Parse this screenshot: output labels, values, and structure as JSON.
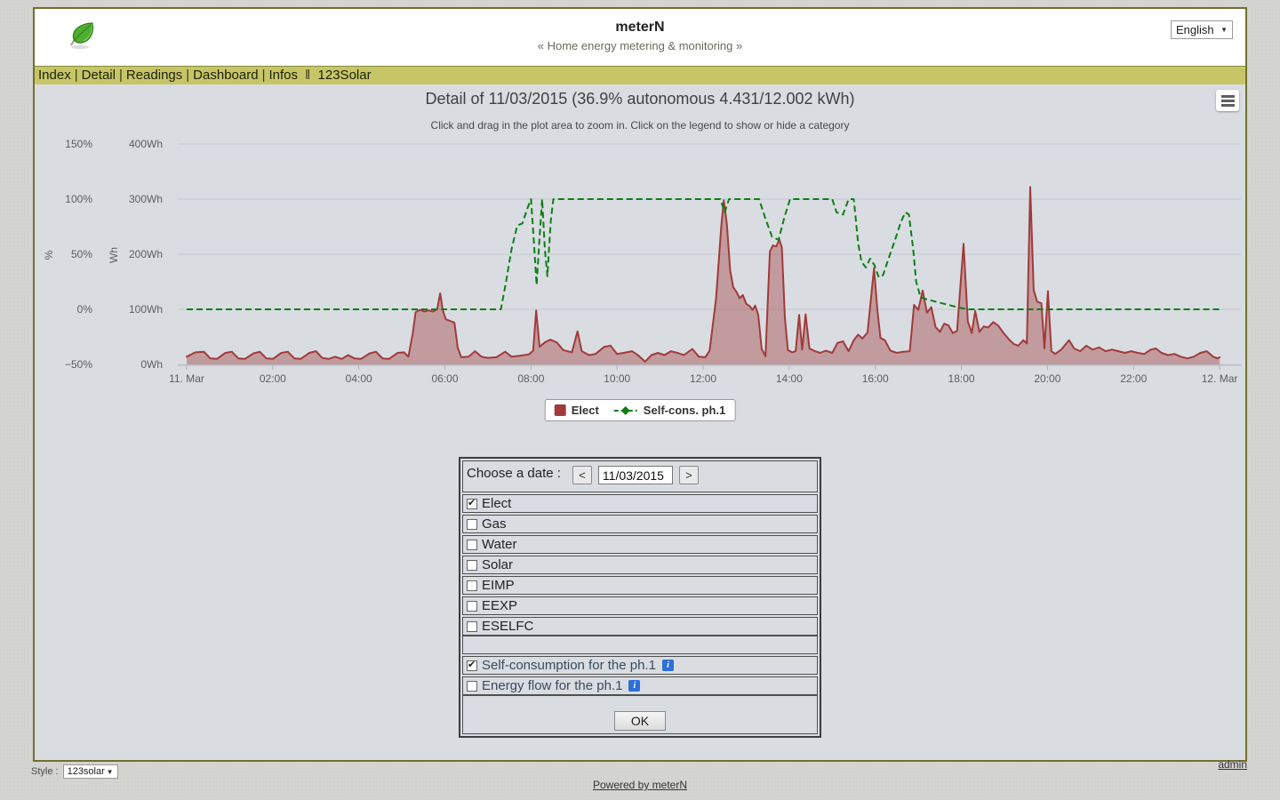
{
  "header": {
    "title": "meterN",
    "subtitle": "« Home energy metering & monitoring »",
    "language": "English"
  },
  "nav": {
    "items": [
      "Index",
      "Detail",
      "Readings",
      "Dashboard",
      "Infos"
    ],
    "separator": "|",
    "double_separator": "‖",
    "external_item": "123Solar"
  },
  "chart_data": {
    "type": "area+line",
    "title": "Detail of 11/03/2015 (36.9% autonomous 4.431/12.002 kWh)",
    "subtitle": "Click and drag in the plot area to zoom in. Click on the legend to show or hide a category",
    "x_axis": {
      "tick_labels": [
        "11. Mar",
        "02:00",
        "04:00",
        "06:00",
        "08:00",
        "10:00",
        "12:00",
        "14:00",
        "16:00",
        "18:00",
        "20:00",
        "22:00",
        "12. Mar"
      ],
      "tick_hours": [
        0,
        2,
        4,
        6,
        8,
        10,
        12,
        14,
        16,
        18,
        20,
        22,
        24
      ],
      "range_hours": [
        0,
        24
      ]
    },
    "y_axis_pct": {
      "title": "%",
      "tick_labels": [
        "150%",
        "100%",
        "50%",
        "0%",
        "−50%"
      ],
      "tick_values": [
        150,
        100,
        50,
        0,
        -50
      ],
      "range": [
        -50,
        150
      ]
    },
    "y_axis_wh": {
      "title": "Wh",
      "tick_labels": [
        "400Wh",
        "300Wh",
        "200Wh",
        "100Wh",
        "0Wh"
      ],
      "tick_values": [
        400,
        300,
        200,
        100,
        0
      ],
      "range": [
        0,
        400
      ]
    },
    "grid": true,
    "legend_position": "bottom-center",
    "series": [
      {
        "name": "Elect",
        "type": "area",
        "axis": "wh",
        "color": "#A13A3A",
        "fill": "rgba(161,58,58,0.4)",
        "points": [
          [
            0,
            14
          ],
          [
            0.2,
            22
          ],
          [
            0.4,
            23
          ],
          [
            0.55,
            11
          ],
          [
            0.7,
            10
          ],
          [
            0.9,
            21
          ],
          [
            1.05,
            23
          ],
          [
            1.2,
            11
          ],
          [
            1.35,
            10
          ],
          [
            1.55,
            20
          ],
          [
            1.7,
            23
          ],
          [
            1.85,
            11
          ],
          [
            2,
            10
          ],
          [
            2.2,
            21
          ],
          [
            2.35,
            23
          ],
          [
            2.5,
            11
          ],
          [
            2.65,
            10
          ],
          [
            2.85,
            21
          ],
          [
            3,
            24
          ],
          [
            3.15,
            12
          ],
          [
            3.3,
            10
          ],
          [
            3.45,
            14
          ],
          [
            3.6,
            10
          ],
          [
            3.75,
            17
          ],
          [
            3.9,
            11
          ],
          [
            4.05,
            10
          ],
          [
            4.25,
            20
          ],
          [
            4.4,
            23
          ],
          [
            4.55,
            11
          ],
          [
            4.7,
            10
          ],
          [
            4.9,
            21
          ],
          [
            5.05,
            22
          ],
          [
            5.15,
            14
          ],
          [
            5.25,
            55
          ],
          [
            5.32,
            95
          ],
          [
            5.42,
            99
          ],
          [
            5.52,
            96
          ],
          [
            5.62,
            98
          ],
          [
            5.72,
            96
          ],
          [
            5.82,
            100
          ],
          [
            5.89,
            129
          ],
          [
            5.95,
            99
          ],
          [
            6.02,
            82
          ],
          [
            6.12,
            79
          ],
          [
            6.22,
            76
          ],
          [
            6.3,
            30
          ],
          [
            6.38,
            13
          ],
          [
            6.55,
            14
          ],
          [
            6.7,
            24
          ],
          [
            6.85,
            14
          ],
          [
            7,
            12
          ],
          [
            7.2,
            13
          ],
          [
            7.4,
            23
          ],
          [
            7.55,
            14
          ],
          [
            7.75,
            16
          ],
          [
            7.95,
            18
          ],
          [
            8.05,
            25
          ],
          [
            8.12,
            98
          ],
          [
            8.2,
            32
          ],
          [
            8.32,
            40
          ],
          [
            8.45,
            45
          ],
          [
            8.6,
            40
          ],
          [
            8.75,
            26
          ],
          [
            8.95,
            22
          ],
          [
            9.08,
            60
          ],
          [
            9.18,
            24
          ],
          [
            9.35,
            17
          ],
          [
            9.5,
            19
          ],
          [
            9.7,
            32
          ],
          [
            9.85,
            34
          ],
          [
            10,
            19
          ],
          [
            10.15,
            21
          ],
          [
            10.35,
            24
          ],
          [
            10.5,
            16
          ],
          [
            10.65,
            5
          ],
          [
            10.8,
            17
          ],
          [
            10.95,
            21
          ],
          [
            11.1,
            17
          ],
          [
            11.25,
            24
          ],
          [
            11.4,
            21
          ],
          [
            11.55,
            17
          ],
          [
            11.75,
            28
          ],
          [
            11.9,
            14
          ],
          [
            12.05,
            13
          ],
          [
            12.15,
            25
          ],
          [
            12.3,
            120
          ],
          [
            12.42,
            250
          ],
          [
            12.48,
            298
          ],
          [
            12.55,
            255
          ],
          [
            12.63,
            170
          ],
          [
            12.7,
            140
          ],
          [
            12.78,
            131
          ],
          [
            12.85,
            120
          ],
          [
            12.92,
            126
          ],
          [
            13,
            110
          ],
          [
            13.08,
            106
          ],
          [
            13.15,
            99
          ],
          [
            13.21,
            107
          ],
          [
            13.28,
            90
          ],
          [
            13.36,
            28
          ],
          [
            13.45,
            15
          ],
          [
            13.55,
            205
          ],
          [
            13.62,
            216
          ],
          [
            13.7,
            214
          ],
          [
            13.77,
            227
          ],
          [
            13.83,
            212
          ],
          [
            13.9,
            85
          ],
          [
            13.97,
            26
          ],
          [
            14.07,
            22
          ],
          [
            14.15,
            24
          ],
          [
            14.23,
            90
          ],
          [
            14.3,
            27
          ],
          [
            14.38,
            91
          ],
          [
            14.47,
            29
          ],
          [
            14.6,
            24
          ],
          [
            14.72,
            21
          ],
          [
            14.85,
            25
          ],
          [
            15,
            21
          ],
          [
            15.12,
            39
          ],
          [
            15.25,
            42
          ],
          [
            15.38,
            24
          ],
          [
            15.5,
            44
          ],
          [
            15.6,
            54
          ],
          [
            15.7,
            47
          ],
          [
            15.82,
            58
          ],
          [
            15.97,
            175
          ],
          [
            16.05,
            98
          ],
          [
            16.12,
            48
          ],
          [
            16.22,
            44
          ],
          [
            16.35,
            25
          ],
          [
            16.5,
            21
          ],
          [
            16.65,
            23
          ],
          [
            16.8,
            24
          ],
          [
            16.9,
            108
          ],
          [
            17,
            99
          ],
          [
            17.1,
            134
          ],
          [
            17.2,
            94
          ],
          [
            17.3,
            104
          ],
          [
            17.4,
            68
          ],
          [
            17.5,
            59
          ],
          [
            17.6,
            74
          ],
          [
            17.7,
            71
          ],
          [
            17.8,
            57
          ],
          [
            17.9,
            61
          ],
          [
            18.05,
            219
          ],
          [
            18.15,
            78
          ],
          [
            18.24,
            57
          ],
          [
            18.32,
            97
          ],
          [
            18.42,
            59
          ],
          [
            18.52,
            69
          ],
          [
            18.62,
            67
          ],
          [
            18.74,
            77
          ],
          [
            18.86,
            70
          ],
          [
            18.97,
            58
          ],
          [
            19.1,
            46
          ],
          [
            19.22,
            37
          ],
          [
            19.32,
            34
          ],
          [
            19.44,
            44
          ],
          [
            19.52,
            38
          ],
          [
            19.6,
            322
          ],
          [
            19.68,
            135
          ],
          [
            19.76,
            114
          ],
          [
            19.86,
            111
          ],
          [
            19.93,
            29
          ],
          [
            20.01,
            133
          ],
          [
            20.09,
            24
          ],
          [
            20.18,
            19
          ],
          [
            20.32,
            27
          ],
          [
            20.5,
            44
          ],
          [
            20.62,
            29
          ],
          [
            20.76,
            24
          ],
          [
            20.9,
            34
          ],
          [
            21.05,
            27
          ],
          [
            21.2,
            31
          ],
          [
            21.35,
            24
          ],
          [
            21.5,
            27
          ],
          [
            21.65,
            24
          ],
          [
            21.8,
            21
          ],
          [
            21.95,
            24
          ],
          [
            22.1,
            21
          ],
          [
            22.25,
            19
          ],
          [
            22.4,
            27
          ],
          [
            22.52,
            29
          ],
          [
            22.65,
            21
          ],
          [
            22.8,
            17
          ],
          [
            22.95,
            19
          ],
          [
            23.1,
            14
          ],
          [
            23.25,
            11
          ],
          [
            23.4,
            14
          ],
          [
            23.55,
            21
          ],
          [
            23.7,
            24
          ],
          [
            23.85,
            14
          ],
          [
            23.95,
            11
          ],
          [
            24,
            13
          ]
        ]
      },
      {
        "name": "Self-cons. ph.1",
        "type": "dashed-line",
        "axis": "pct",
        "color": "#0E7D12",
        "points": [
          [
            0,
            0
          ],
          [
            7.3,
            0
          ],
          [
            7.42,
            25
          ],
          [
            7.55,
            55
          ],
          [
            7.68,
            76
          ],
          [
            7.8,
            78
          ],
          [
            7.92,
            92
          ],
          [
            8,
            100
          ],
          [
            8.07,
            60
          ],
          [
            8.13,
            22
          ],
          [
            8.2,
            65
          ],
          [
            8.26,
            100
          ],
          [
            8.32,
            55
          ],
          [
            8.38,
            30
          ],
          [
            8.46,
            80
          ],
          [
            8.52,
            100
          ],
          [
            12.4,
            100
          ],
          [
            12.5,
            88
          ],
          [
            12.6,
            100
          ],
          [
            13.3,
            100
          ],
          [
            13.45,
            82
          ],
          [
            13.6,
            66
          ],
          [
            13.75,
            63
          ],
          [
            13.9,
            85
          ],
          [
            14.02,
            100
          ],
          [
            15,
            100
          ],
          [
            15.1,
            88
          ],
          [
            15.25,
            86
          ],
          [
            15.38,
            100
          ],
          [
            15.5,
            100
          ],
          [
            15.6,
            60
          ],
          [
            15.68,
            43
          ],
          [
            15.78,
            38
          ],
          [
            15.88,
            46
          ],
          [
            15.98,
            40
          ],
          [
            16.08,
            29
          ],
          [
            16.18,
            31
          ],
          [
            16.3,
            45
          ],
          [
            16.45,
            62
          ],
          [
            16.6,
            80
          ],
          [
            16.7,
            88
          ],
          [
            16.78,
            86
          ],
          [
            16.88,
            55
          ],
          [
            16.95,
            25
          ],
          [
            17.05,
            11
          ],
          [
            17.2,
            9
          ],
          [
            17.4,
            7
          ],
          [
            17.6,
            5
          ],
          [
            17.9,
            2
          ],
          [
            18.15,
            0
          ],
          [
            24,
            0
          ]
        ]
      }
    ],
    "legend": [
      {
        "label": "Elect",
        "marker": "square",
        "color": "#A13A3A"
      },
      {
        "label": "Self-cons. ph.1",
        "marker": "dashed-diamond",
        "color": "#0E7D12"
      }
    ]
  },
  "form": {
    "date_label": "Choose a date :",
    "prev_label": "<",
    "next_label": ">",
    "date_value": "11/03/2015",
    "meters": [
      {
        "label": "Elect",
        "checked": true
      },
      {
        "label": "Gas",
        "checked": false
      },
      {
        "label": "Water",
        "checked": false
      },
      {
        "label": "Solar",
        "checked": false
      },
      {
        "label": "EIMP",
        "checked": false
      },
      {
        "label": "EEXP",
        "checked": false
      },
      {
        "label": "ESELFC",
        "checked": false
      }
    ],
    "phase_options": [
      {
        "label": "Self-consumption for the ph.1",
        "checked": true,
        "info": "i"
      },
      {
        "label": "Energy flow for the ph.1",
        "checked": false,
        "info": "i"
      }
    ],
    "ok_label": "OK"
  },
  "footer": {
    "style_label": "Style :",
    "style_value": "123solar",
    "admin_label": "admin",
    "powered_label": "Powered by meterN"
  }
}
